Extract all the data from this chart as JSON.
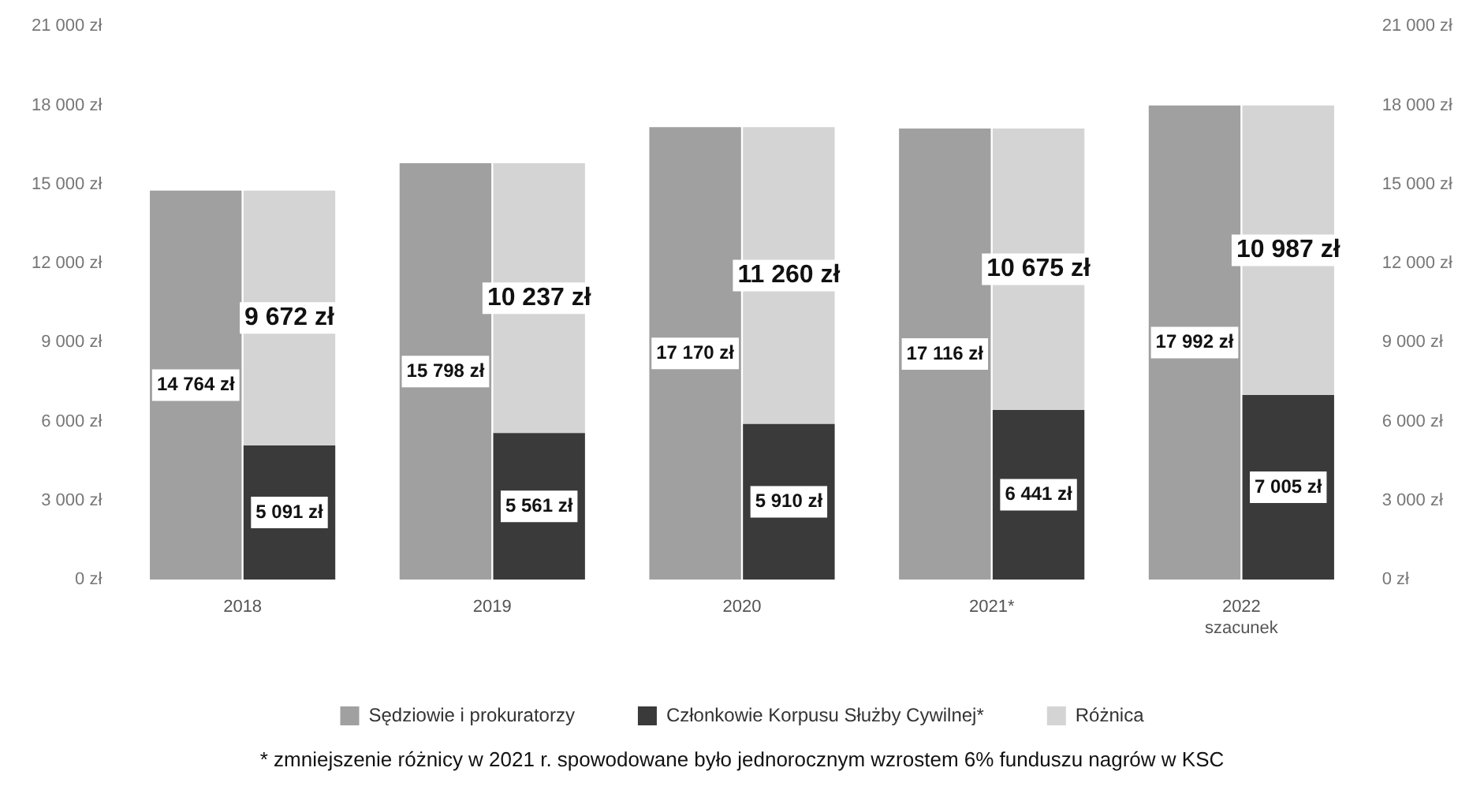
{
  "chart_data": {
    "type": "bar",
    "categories": [
      "2018",
      "2019",
      "2020",
      "2021*",
      "2022\nszacunek"
    ],
    "series": [
      {
        "name": "Różnica",
        "color": "#d4d4d4",
        "values": [
          9672,
          10237,
          11260,
          10675,
          10987
        ],
        "base": [
          5091,
          5561,
          5910,
          6441,
          7005
        ],
        "value_labels": [
          "9 672 zł",
          "10 237 zł",
          "11 260 zł",
          "10 675 zł",
          "10 987 zł"
        ]
      },
      {
        "name": "Sędziowie i prokuratorzy",
        "color": "#a0a0a0",
        "values": [
          14764,
          15798,
          17170,
          17116,
          17992
        ],
        "value_labels": [
          "14 764 zł",
          "15 798 zł",
          "17 170 zł",
          "17 116 zł",
          "17 992 zł"
        ]
      },
      {
        "name": "Członkowie Korpusu Służby Cywilnej*",
        "color": "#3a3a3a",
        "values": [
          5091,
          5561,
          5910,
          6441,
          7005
        ],
        "value_labels": [
          "5 091 zł",
          "5 561 zł",
          "5 910 zł",
          "6 441 zł",
          "7 005 zł"
        ]
      }
    ],
    "ylim": [
      0,
      21000
    ],
    "yticks": [
      {
        "value": 0,
        "label": "0 zł"
      },
      {
        "value": 3000,
        "label": "3 000 zł"
      },
      {
        "value": 6000,
        "label": "6 000 zł"
      },
      {
        "value": 9000,
        "label": "9 000 zł"
      },
      {
        "value": 12000,
        "label": "12 000 zł"
      },
      {
        "value": 15000,
        "label": "15 000 zł"
      },
      {
        "value": 18000,
        "label": "18 000 zł"
      },
      {
        "value": 21000,
        "label": "21 000 zł"
      }
    ],
    "y2lim": [
      0,
      21000
    ],
    "y2ticks": [
      {
        "value": 0,
        "label": "0 zł"
      },
      {
        "value": 3000,
        "label": "3 000 zł"
      },
      {
        "value": 6000,
        "label": "6 000 zł"
      },
      {
        "value": 9000,
        "label": "9 000 zł"
      },
      {
        "value": 12000,
        "label": "12 000 zł"
      },
      {
        "value": 15000,
        "label": "15 000 zł"
      },
      {
        "value": 18000,
        "label": "18 000 zł"
      },
      {
        "value": 21000,
        "label": "21 000 zł"
      }
    ],
    "grid": false,
    "legend": "bottom",
    "annotations": [
      "* zmniejszenie różnicy w 2021 r. spowodowane było jednorocznym wzrostem 6% funduszu nagrów w KSC"
    ]
  }
}
